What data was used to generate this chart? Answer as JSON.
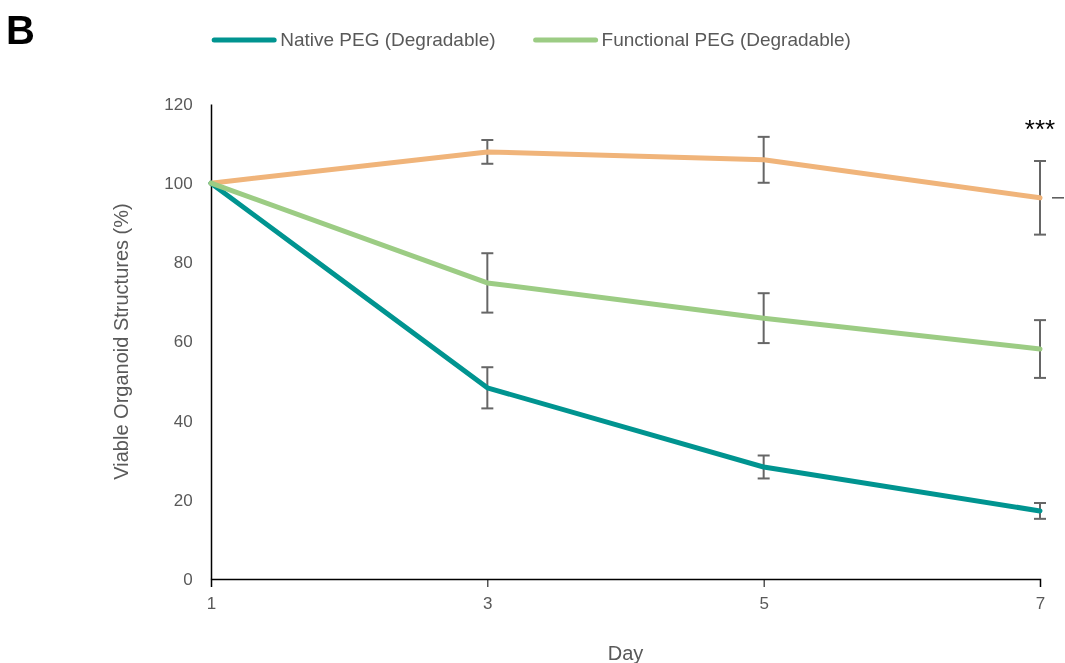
{
  "chart_data": {
    "type": "line",
    "xlabel": "Day",
    "ylabel": "Viable Organoid Structures  (%)",
    "x": [
      1,
      3,
      5,
      7
    ],
    "xlim": [
      1,
      7
    ],
    "xticks": [
      1,
      3,
      5,
      7
    ],
    "ylim": [
      0,
      120
    ],
    "yticks": [
      0,
      20,
      40,
      60,
      80,
      100,
      120
    ],
    "grid": false,
    "legend": "top",
    "marker": "none",
    "line_style": "solid",
    "series": [
      {
        "color": "#f0b47a",
        "values": [
          100,
          107.9,
          105.9,
          96.3
        ],
        "errors": [
          null,
          3,
          5.8,
          9.3
        ]
      },
      {
        "name": "Native PEG (Degradable)",
        "color": "#009490",
        "values": [
          100,
          48.3,
          28.3,
          17.2
        ],
        "errors": [
          null,
          5.2,
          2.9,
          2
        ]
      },
      {
        "name": "Functional PEG (Degradable)",
        "color": "#9ccc84",
        "values": [
          100,
          74.8,
          65.9,
          58.1
        ],
        "errors": [
          null,
          7.5,
          6.3,
          7.3
        ]
      }
    ],
    "annotations": [
      "B",
      "***"
    ]
  }
}
